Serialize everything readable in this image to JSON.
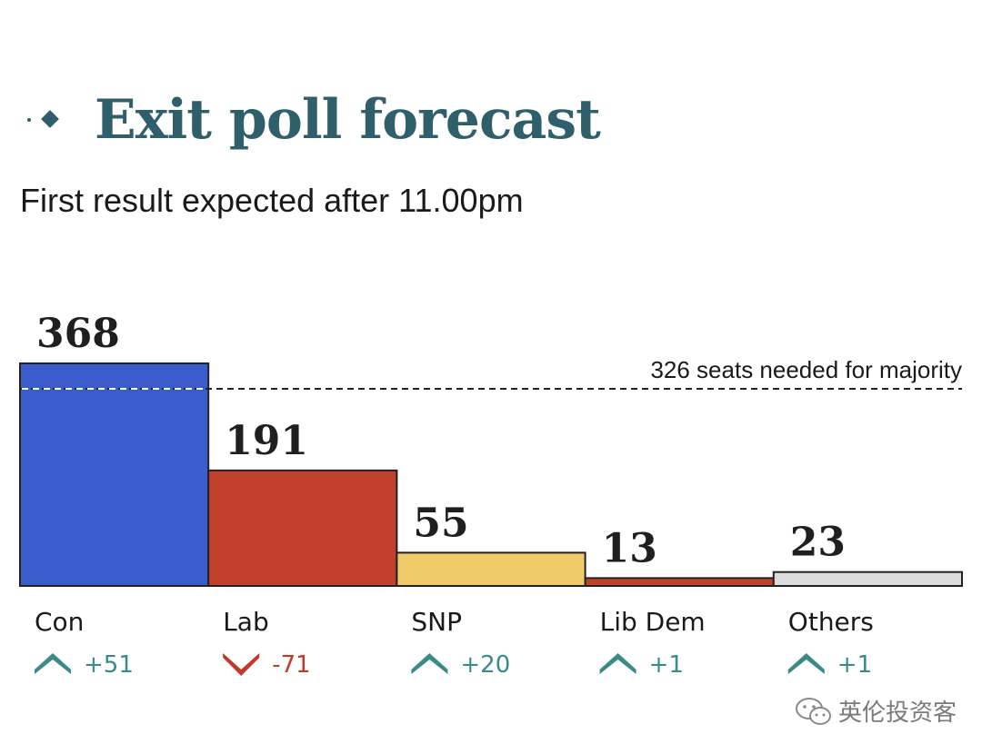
{
  "header": {
    "title": "Exit poll forecast",
    "subtitle": "First result expected after 11.00pm"
  },
  "colors": {
    "title": "#2f5f6a",
    "up": "#3a8a8a",
    "down": "#c0392b",
    "Con": "#3a5ccc",
    "Lab": "#c1412e",
    "SNP": "#f0cb6a",
    "Lib Dem": "#c1412e",
    "Others": "#dcdcdc"
  },
  "chart_data": {
    "type": "bar",
    "categories": [
      "Con",
      "Lab",
      "SNP",
      "Lib Dem",
      "Others"
    ],
    "values": [
      368,
      191,
      55,
      13,
      23
    ],
    "value_labels": [
      "368",
      "191",
      "55",
      "13",
      "23"
    ],
    "changes": [
      "+51",
      "-71",
      "+20",
      "+1",
      "+1"
    ],
    "change_directions": [
      "up",
      "down",
      "up",
      "up",
      "up"
    ],
    "reference_line": {
      "value": 326,
      "label": "326 seats needed for majority",
      "style": "dashed"
    },
    "ylim": [
      0,
      368
    ],
    "grid": false
  },
  "watermark": {
    "text": "英伦投资客",
    "icon": "wechat-icon"
  }
}
